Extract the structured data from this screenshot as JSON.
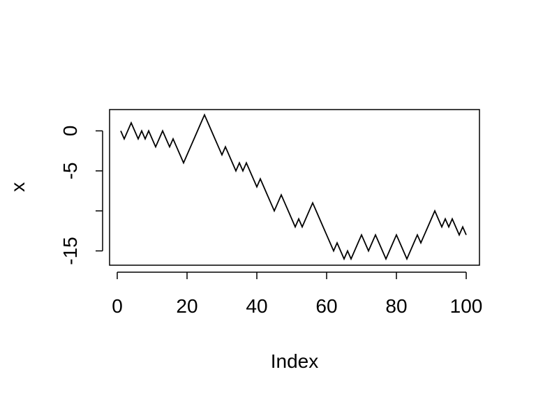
{
  "chart_data": {
    "type": "line",
    "title": "",
    "xlabel": "Index",
    "ylabel": "x",
    "xlim": [
      1,
      100
    ],
    "ylim": [
      -16,
      2
    ],
    "x_ticks": [
      0,
      20,
      40,
      60,
      80,
      100
    ],
    "y_ticks": [
      0,
      -5,
      -10,
      -15
    ],
    "x_tick_labels": [
      "0",
      "20",
      "40",
      "60",
      "80",
      "100"
    ],
    "y_tick_labels": [
      "0",
      "-5",
      "",
      "-15"
    ],
    "grid": false,
    "legend": "none",
    "line_color": "#000000",
    "series": [
      {
        "x": [
          1,
          2,
          3,
          4,
          5,
          6,
          7,
          8,
          9,
          10,
          11,
          12,
          13,
          14,
          15,
          16,
          17,
          18,
          19,
          20,
          21,
          22,
          23,
          24,
          25,
          26,
          27,
          28,
          29,
          30,
          31,
          32,
          33,
          34,
          35,
          36,
          37,
          38,
          39,
          40,
          41,
          42,
          43,
          44,
          45,
          46,
          47,
          48,
          49,
          50,
          51,
          52,
          53,
          54,
          55,
          56,
          57,
          58,
          59,
          60,
          61,
          62,
          63,
          64,
          65,
          66,
          67,
          68,
          69,
          70,
          71,
          72,
          73,
          74,
          75,
          76,
          77,
          78,
          79,
          80,
          81,
          82,
          83,
          84,
          85,
          86,
          87,
          88,
          89,
          90,
          91,
          92,
          93,
          94,
          95,
          96,
          97,
          98,
          99,
          100
        ],
        "values": [
          0,
          -1,
          0,
          1,
          0,
          -1,
          0,
          -1,
          0,
          -1,
          -2,
          -1,
          0,
          -1,
          -2,
          -1,
          -2,
          -3,
          -4,
          -3,
          -2,
          -1,
          0,
          1,
          2,
          1,
          0,
          -1,
          -2,
          -3,
          -2,
          -3,
          -4,
          -5,
          -4,
          -5,
          -4,
          -5,
          -6,
          -7,
          -6,
          -7,
          -8,
          -9,
          -10,
          -9,
          -8,
          -9,
          -10,
          -11,
          -12,
          -11,
          -12,
          -11,
          -10,
          -9,
          -10,
          -11,
          -12,
          -13,
          -14,
          -15,
          -14,
          -15,
          -16,
          -15,
          -16,
          -15,
          -14,
          -13,
          -14,
          -15,
          -14,
          -13,
          -14,
          -15,
          -16,
          -15,
          -14,
          -13,
          -14,
          -15,
          -16,
          -15,
          -14,
          -13,
          -14,
          -13,
          -12,
          -11,
          -10,
          -11,
          -12,
          -11,
          -12,
          -11,
          -12,
          -13,
          -12,
          -13
        ]
      }
    ]
  }
}
